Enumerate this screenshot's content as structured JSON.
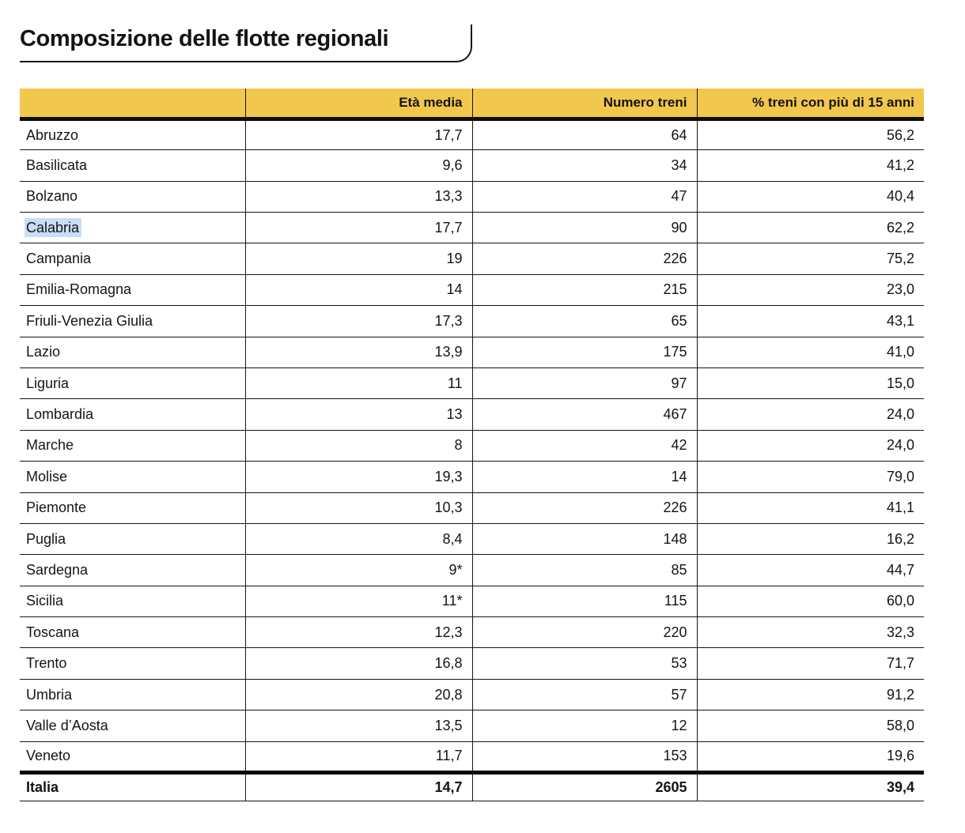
{
  "title": "Composizione delle flotte regionali",
  "colors": {
    "header_bg": "#F2C74D",
    "selection_highlight": "#C9DDF8",
    "border": "#151515",
    "text": "#141414"
  },
  "chart_data": {
    "type": "table",
    "title": "Composizione delle flotte regionali",
    "columns": [
      "",
      "Età media",
      "Numero treni",
      "% treni con più di 15 anni"
    ],
    "rows": [
      [
        "Abruzzo",
        "17,7",
        "64",
        "56,2"
      ],
      [
        "Basilicata",
        "9,6",
        "34",
        "41,2"
      ],
      [
        "Bolzano",
        "13,3",
        "47",
        "40,4"
      ],
      [
        "Calabria",
        "17,7",
        "90",
        "62,2"
      ],
      [
        "Campania",
        "19",
        "226",
        "75,2"
      ],
      [
        "Emilia-Romagna",
        "14",
        "215",
        "23,0"
      ],
      [
        "Friuli-Venezia Giulia",
        "17,3",
        "65",
        "43,1"
      ],
      [
        "Lazio",
        "13,9",
        "175",
        "41,0"
      ],
      [
        "Liguria",
        "11",
        "97",
        "15,0"
      ],
      [
        "Lombardia",
        "13",
        "467",
        "24,0"
      ],
      [
        "Marche",
        "8",
        "42",
        "24,0"
      ],
      [
        "Molise",
        "19,3",
        "14",
        "79,0"
      ],
      [
        "Piemonte",
        "10,3",
        "226",
        "41,1"
      ],
      [
        "Puglia",
        "8,4",
        "148",
        "16,2"
      ],
      [
        "Sardegna",
        "9*",
        "85",
        "44,7"
      ],
      [
        "Sicilia",
        "11*",
        "115",
        "60,0"
      ],
      [
        "Toscana",
        "12,3",
        "220",
        "32,3"
      ],
      [
        "Trento",
        "16,8",
        "53",
        "71,7"
      ],
      [
        "Umbria",
        "20,8",
        "57",
        "91,2"
      ],
      [
        "Valle d’Aosta",
        "13,5",
        "12",
        "58,0"
      ],
      [
        "Veneto",
        "11,7",
        "153",
        "19,6"
      ]
    ],
    "total_row": [
      "Italia",
      "14,7",
      "2605",
      "39,4"
    ],
    "highlighted_region": "Calabria"
  }
}
